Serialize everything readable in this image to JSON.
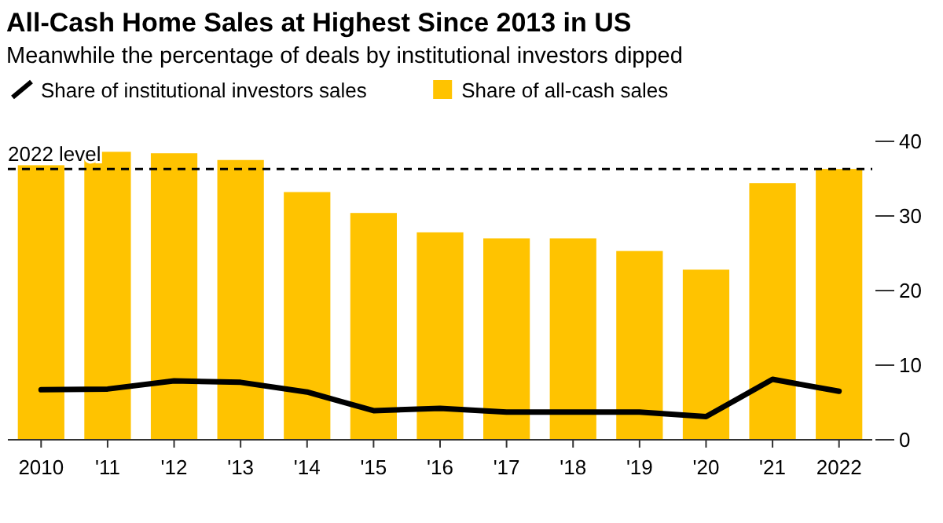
{
  "chart_data": {
    "type": "bar",
    "title": "All-Cash Home Sales at Highest Since 2013 in US",
    "subtitle": "Meanwhile the percentage of deals by institutional investors dipped",
    "categories": [
      "2010",
      "'11",
      "'12",
      "'13",
      "'14",
      "'15",
      "'16",
      "'17",
      "'18",
      "'19",
      "'20",
      "'21",
      "2022"
    ],
    "series": [
      {
        "name": "Share of institutional investors sales",
        "type": "line",
        "color": "#000000",
        "values": [
          6.7,
          6.8,
          7.9,
          7.7,
          6.4,
          3.9,
          4.2,
          3.7,
          3.7,
          3.7,
          3.1,
          8.1,
          6.5
        ]
      },
      {
        "name": "Share of all-cash sales",
        "color": "#ffc300",
        "values": [
          36.8,
          38.6,
          38.4,
          37.5,
          33.2,
          30.4,
          27.8,
          27.0,
          27.0,
          25.3,
          22.8,
          34.4,
          36.3
        ]
      }
    ],
    "ylim": [
      0,
      40
    ],
    "yticks": [
      0,
      10,
      20,
      30,
      40
    ],
    "grid": false,
    "legend": "top left",
    "ref_lines": [
      {
        "axis": "y",
        "value": 36.3,
        "label": "2022 level",
        "line_style": "dashed",
        "color": "#000000"
      }
    ]
  }
}
